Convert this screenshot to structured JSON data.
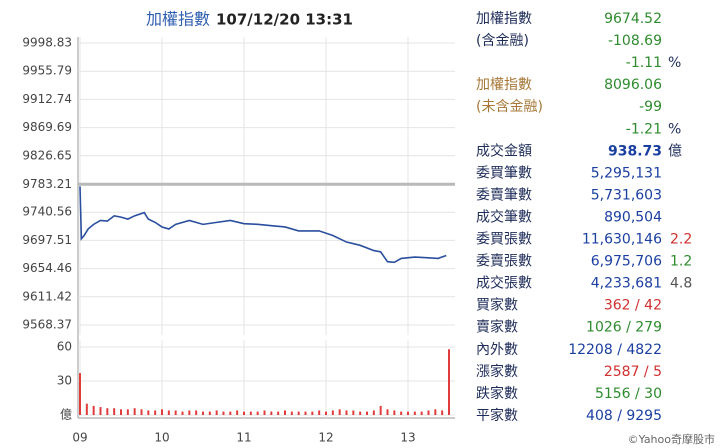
{
  "chart_data": [
    {
      "type": "line",
      "title": "加權指數",
      "subtitle": "107/12/20 13:31",
      "x": [
        0,
        1,
        3,
        6,
        10,
        15,
        20,
        25,
        30,
        35,
        40,
        47,
        50,
        55,
        60,
        65,
        70,
        80,
        90,
        100,
        110,
        120,
        130,
        140,
        150,
        160,
        175,
        185,
        195,
        205,
        215,
        220,
        225,
        230,
        235,
        245,
        255,
        262,
        268
      ],
      "values": [
        9780,
        9700,
        9705,
        9715,
        9722,
        9728,
        9727,
        9735,
        9733,
        9730,
        9735,
        9740,
        9730,
        9725,
        9718,
        9715,
        9722,
        9728,
        9722,
        9725,
        9728,
        9723,
        9722,
        9720,
        9718,
        9712,
        9712,
        9705,
        9695,
        9690,
        9682,
        9680,
        9665,
        9664,
        9670,
        9672,
        9671,
        9670,
        9674.52
      ],
      "color": "#2a4f9e",
      "xlim": [
        0,
        270
      ],
      "ylim": [
        9568.37,
        9998.83
      ],
      "yticks": [
        9998.83,
        9955.79,
        9912.74,
        9869.69,
        9826.65,
        9783.21,
        9740.56,
        9697.51,
        9654.46,
        9611.42,
        9568.37
      ],
      "reference_line": 9783.21,
      "reference_color": "#b9b9b9",
      "grid": true
    },
    {
      "type": "bar",
      "x": [
        0,
        5,
        10,
        15,
        20,
        25,
        30,
        35,
        40,
        45,
        50,
        55,
        60,
        65,
        70,
        75,
        80,
        85,
        90,
        95,
        100,
        105,
        110,
        115,
        120,
        125,
        130,
        135,
        140,
        145,
        150,
        155,
        160,
        165,
        170,
        175,
        180,
        185,
        190,
        195,
        200,
        205,
        210,
        215,
        220,
        225,
        230,
        235,
        240,
        245,
        250,
        255,
        260,
        265,
        270
      ],
      "values": [
        37,
        10,
        8,
        7,
        6,
        6,
        5,
        5,
        6,
        5,
        4,
        4,
        5,
        4,
        4,
        3,
        4,
        4,
        3,
        3,
        4,
        3,
        3,
        4,
        3,
        3,
        3,
        4,
        3,
        3,
        4,
        3,
        3,
        3,
        3,
        4,
        3,
        4,
        5,
        4,
        4,
        3,
        3,
        4,
        8,
        5,
        4,
        3,
        3,
        3,
        3,
        4,
        5,
        4,
        58
      ],
      "color": "#e03c3c",
      "xlim": [
        0,
        270
      ],
      "ylim": [
        0,
        60
      ],
      "yticks": [
        {
          "value": 0,
          "label": "億"
        },
        30,
        60
      ],
      "xticks": [
        {
          "value": 0,
          "label": "09"
        },
        {
          "value": 60,
          "label": "10"
        },
        {
          "value": 120,
          "label": "11"
        },
        {
          "value": 180,
          "label": "12"
        },
        {
          "value": 240,
          "label": "13"
        }
      ],
      "grid": true
    }
  ],
  "quotes": {
    "rows": [
      {
        "label": "加權指數",
        "value": "9674.52",
        "color": "#2e8b2e"
      },
      {
        "label": "(含金融)",
        "value": "-108.69",
        "color": "#2e8b2e"
      },
      {
        "value": "-1.11",
        "unit": "%",
        "color": "#2e8b2e"
      },
      {
        "label": "加權指數",
        "value": "8096.06",
        "color": "#2e8b2e",
        "label_color": "#a7783a"
      },
      {
        "label": "(未含金融)",
        "value": "-99",
        "color": "#2e8b2e",
        "label_color": "#a7783a"
      },
      {
        "value": "-1.21",
        "unit": "%",
        "color": "#2e8b2e"
      },
      {
        "label": "成交金額",
        "value": "938.73",
        "unit": "億",
        "color": "#1b3fa0",
        "bold": true
      },
      {
        "label": "委買筆數",
        "value": "5,295,131",
        "color": "#1b3fa0"
      },
      {
        "label": "委賣筆數",
        "value": "5,731,603",
        "color": "#1b3fa0"
      },
      {
        "label": "成交筆數",
        "value": "890,504",
        "color": "#1b3fa0"
      },
      {
        "label": "委買張數",
        "value": "11,630,146",
        "color": "#1b3fa0",
        "ratio": "2.2",
        "ratio_color": "#d03030"
      },
      {
        "label": "委賣張數",
        "value": "6,975,706",
        "color": "#1b3fa0",
        "ratio": "1.2",
        "ratio_color": "#2e8b2e"
      },
      {
        "label": "成交張數",
        "value": "4,233,681",
        "color": "#1b3fa0",
        "ratio": "4.8",
        "ratio_color": "#555555"
      },
      {
        "label": "買家數",
        "value": "362 / 42",
        "color": "#d03030"
      },
      {
        "label": "賣家數",
        "value": "1026 / 279",
        "color": "#2e8b2e"
      },
      {
        "label": "內外數",
        "value": "12208 / 4822",
        "color": "#1b3fa0"
      },
      {
        "label": "漲家數",
        "value": "2587 / 5",
        "color": "#d03030"
      },
      {
        "label": "跌家數",
        "value": "5156 / 30",
        "color": "#2e8b2e"
      },
      {
        "label": "平家數",
        "value": "408 / 9295",
        "color": "#1b3fa0"
      }
    ],
    "footer": "©Yahoo奇摩股市"
  }
}
